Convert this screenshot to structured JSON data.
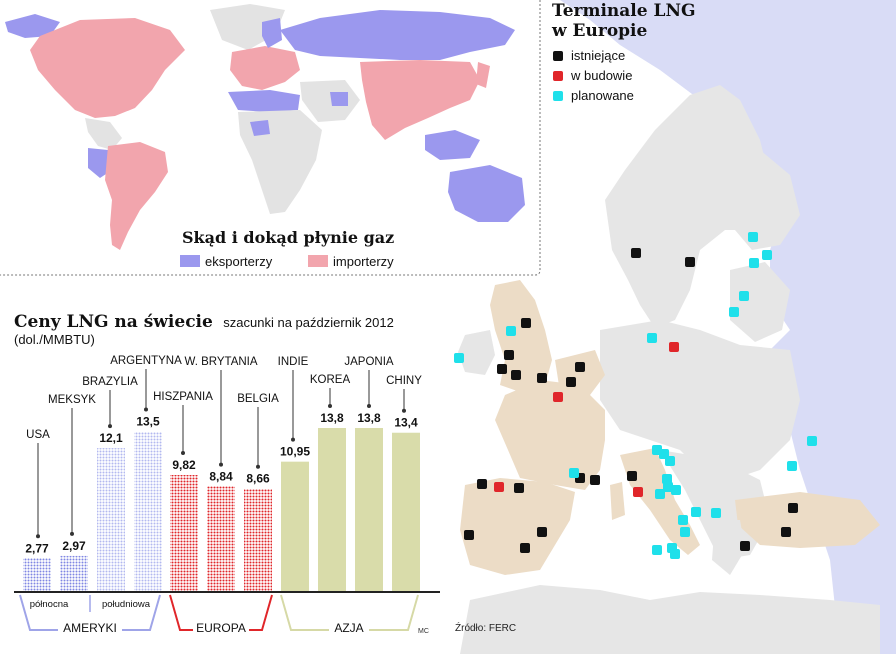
{
  "europe_map": {
    "title_line1": "Terminale LNG",
    "title_line2": "w Europie",
    "legend": [
      {
        "label": "istniejące",
        "color": "#111111"
      },
      {
        "label": "w budowie",
        "color": "#e0262a"
      },
      {
        "label": "planowane",
        "color": "#1fe0ea"
      }
    ],
    "source": "Źródło: FERC",
    "land_color": "#e6e6e6",
    "sea_color": "#ffffff",
    "russia_color": "#d9dcf6",
    "importer_highlight": "#ecdcc6"
  },
  "world_map": {
    "title": "Skąd i dokąd płynie gaz",
    "legend": [
      {
        "label": "eksporterzy",
        "color": "#9b98ee"
      },
      {
        "label": "importerzy",
        "color": "#f2a5ad"
      }
    ]
  },
  "chart_data": {
    "type": "bar",
    "title": "Ceny LNG na świecie",
    "subtitle": "szacunki na październik 2012",
    "ylabel": "(dol./MMBTU)",
    "categories": [
      "USA",
      "MEKSYK",
      "BRAZYLIA",
      "ARGENTYNA",
      "HISZPANIA",
      "W. BRYTANIA",
      "BELGIA",
      "INDIE",
      "KOREA",
      "JAPONIA",
      "CHINY"
    ],
    "values": [
      2.77,
      2.97,
      12.1,
      13.5,
      9.82,
      8.84,
      8.66,
      10.95,
      13.8,
      13.8,
      13.4
    ],
    "value_labels": [
      "2,77",
      "2,97",
      "12,1",
      "13,5",
      "9,82",
      "8,84",
      "8,66",
      "10,95",
      "13,8",
      "13,8",
      "13,4"
    ],
    "groups": [
      {
        "name": "AMERYKI",
        "color": "#9fa4e8",
        "subgroups": [
          "północna",
          "południowa"
        ]
      },
      {
        "name": "EUROPA",
        "color": "#e0262a",
        "subgroups": []
      },
      {
        "name": "AZJA",
        "color": "#d6d9a6",
        "subgroups": []
      }
    ],
    "ylim": [
      0,
      15
    ],
    "grid": false,
    "credit": "MC"
  }
}
